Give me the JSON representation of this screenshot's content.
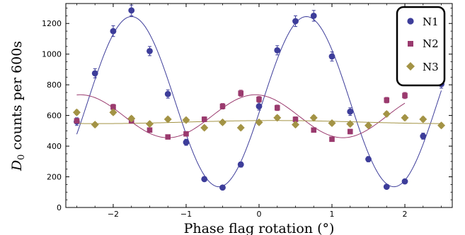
{
  "chart_data": {
    "type": "scatter",
    "title": "",
    "xlabel": "Phase flag rotation (°)",
    "ylabel_main": "D",
    "ylabel_sub": "0",
    "ylabel_rest": " counts per 600s",
    "xlim": [
      -2.65,
      2.65
    ],
    "ylim": [
      0,
      1330
    ],
    "x_ticks": [
      -2,
      -1,
      0,
      1,
      2
    ],
    "x_tick_labels": [
      "−2",
      "−1",
      "0",
      "1",
      "2"
    ],
    "y_ticks": [
      0,
      200,
      400,
      600,
      800,
      1000,
      1200
    ],
    "y_tick_labels": [
      "0",
      "200",
      "400",
      "600",
      "800",
      "1000",
      "1200"
    ],
    "grid": false,
    "legend_position": "top-right",
    "series": [
      {
        "name": "N1",
        "color": "#3d3d9a",
        "marker": "circle",
        "x": [
          -2.5,
          -2.25,
          -2.0,
          -1.75,
          -1.5,
          -1.25,
          -1.0,
          -0.75,
          -0.5,
          -0.25,
          0.0,
          0.25,
          0.5,
          0.75,
          1.0,
          1.25,
          1.5,
          1.75,
          2.0,
          2.25,
          2.5
        ],
        "y": [
          560,
          875,
          1150,
          1285,
          1020,
          740,
          425,
          185,
          130,
          280,
          660,
          1025,
          1215,
          1250,
          985,
          625,
          315,
          135,
          170,
          465,
          805
        ],
        "err": [
          25,
          30,
          35,
          35,
          30,
          27,
          20,
          15,
          12,
          17,
          25,
          30,
          35,
          35,
          30,
          25,
          17,
          12,
          14,
          20,
          27
        ],
        "fit": {
          "offset": 690,
          "amplitude": 555,
          "period": 2.4,
          "peak_x": -1.75
        }
      },
      {
        "name": "N2",
        "color": "#9a3a6e",
        "marker": "square",
        "x": [
          -2.5,
          -2.0,
          -1.75,
          -1.5,
          -1.25,
          -1.0,
          -0.75,
          -0.5,
          -0.25,
          0.0,
          0.25,
          0.5,
          0.75,
          1.0,
          1.25,
          1.75,
          2.0
        ],
        "y": [
          565,
          655,
          565,
          505,
          460,
          480,
          575,
          660,
          745,
          705,
          650,
          575,
          505,
          445,
          495,
          700,
          730
        ],
        "err": [
          15,
          18,
          16,
          14,
          14,
          14,
          16,
          18,
          20,
          19,
          18,
          16,
          14,
          14,
          15,
          18,
          20
        ],
        "fit": {
          "offset": 595,
          "amplitude": 140,
          "period": 2.4,
          "peak_x": -0.05
        }
      },
      {
        "name": "N3",
        "color": "#a39345",
        "marker": "diamond",
        "x": [
          -2.5,
          -2.25,
          -2.0,
          -1.75,
          -1.5,
          -1.25,
          -1.0,
          -0.75,
          -0.5,
          -0.25,
          0.0,
          0.25,
          0.5,
          0.75,
          1.0,
          1.25,
          1.5,
          1.75,
          2.0,
          2.25,
          2.5
        ],
        "y": [
          620,
          540,
          620,
          580,
          545,
          575,
          570,
          520,
          555,
          520,
          555,
          585,
          540,
          585,
          550,
          545,
          535,
          610,
          585,
          575,
          535
        ],
        "err": [
          15,
          14,
          15,
          15,
          14,
          14,
          14,
          14,
          14,
          14,
          14,
          15,
          14,
          15,
          14,
          14,
          14,
          15,
          15,
          15,
          14
        ],
        "fit": {
          "offset": 557,
          "amplitude": 10,
          "period": 4.8,
          "peak_x": 0.2
        }
      }
    ]
  }
}
